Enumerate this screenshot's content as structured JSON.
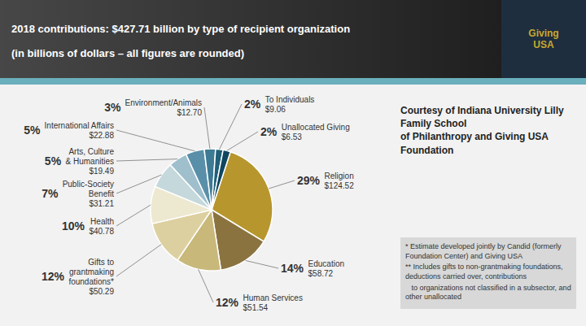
{
  "chart_data": {
    "type": "pie",
    "title": "2018 contributions: $427.71 billion by type of recipient organization",
    "subtitle": "(in billions of dollars – all figures are rounded)",
    "categories": [
      "Religion",
      "Education",
      "Human Services",
      "Gifts to\ngrantmaking\nfoundations*",
      "Health",
      "Public-Society\nBenefit",
      "Arts, Culture\n& Humanities",
      "International Affairs",
      "Environment/Animals",
      "To Individuals",
      "Unallocated Giving"
    ],
    "values": [
      29,
      14,
      12,
      12,
      10,
      7,
      5,
      5,
      3,
      2,
      2
    ],
    "value_labels": [
      "29%",
      "14%",
      "12%",
      "12%",
      "10%",
      "7%",
      "5%",
      "5%",
      "3%",
      "2%",
      "2%"
    ],
    "data_labels": true,
    "colors": [
      "#b8962e",
      "#8b7340",
      "#c8b87a",
      "#ddd0a0",
      "#ede8d0",
      "#c5d8dc",
      "#9fbfcc",
      "#5a8faa",
      "#3d7a94",
      "#1f5f78",
      "#0f4560"
    ],
    "amounts": [
      124.52,
      58.72,
      51.54,
      50.29,
      40.78,
      31.21,
      19.49,
      22.88,
      12.7,
      9.06,
      6.53
    ],
    "amount_labels": [
      "$124.52",
      "$58.72",
      "$51.54",
      "$50.29",
      "$40.78",
      "$31.21",
      "$19.49",
      "$22.88",
      "$12.70",
      "$9.06",
      "$6.53"
    ],
    "annotations": [
      "Giving\nUSA",
      "* Estimate developed jointly by Candid (formerly Foundation Center) and Giving USA",
      "** Includes gifts to non-grantmaking foundations, deductions carried over, contributions",
      "   to organizations not classified in a subsector, and other unallocated",
      "Courtesy of Indiana University Lilly Family School\nof Philanthropy and Giving USA Foundation"
    ]
  }
}
